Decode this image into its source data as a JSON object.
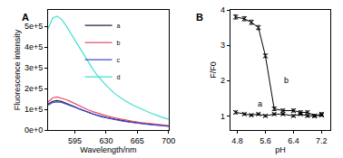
{
  "chart_data": [
    {
      "type": "line",
      "title": "A",
      "x_label": "Wavelength/nm",
      "y_label": "Fluorescence intensity",
      "x": [
        565,
        570,
        575,
        580,
        585,
        590,
        595,
        600,
        605,
        610,
        615,
        620,
        625,
        630,
        640,
        650,
        660,
        670,
        680,
        690,
        700
      ],
      "series": [
        {
          "name": "a",
          "color": "#1f1f3f",
          "values": [
            125000,
            138000,
            142000,
            138000,
            130000,
            122000,
            112000,
            102000,
            93000,
            85000,
            78000,
            72000,
            66000,
            61000,
            52000,
            44000,
            38000,
            32000,
            27000,
            23000,
            19000
          ]
        },
        {
          "name": "b",
          "color": "#e0506a",
          "values": [
            135000,
            155000,
            160000,
            155000,
            147000,
            138000,
            127000,
            116000,
            106000,
            97000,
            89000,
            82000,
            75000,
            69000,
            58000,
            49000,
            42000,
            36000,
            30000,
            25000,
            21000
          ]
        },
        {
          "name": "c",
          "color": "#4a4ad0",
          "values": [
            120000,
            132000,
            136000,
            133000,
            126000,
            118000,
            109000,
            99000,
            91000,
            83000,
            76000,
            70000,
            64000,
            59000,
            50000,
            42000,
            36000,
            30000,
            26000,
            22000,
            18000
          ]
        },
        {
          "name": "d",
          "color": "#40e0d0",
          "values": [
            490000,
            540000,
            550000,
            535000,
            505000,
            470000,
            430000,
            395000,
            360000,
            325000,
            295000,
            265000,
            240000,
            215000,
            175000,
            145000,
            120000,
            100000,
            82000,
            66000,
            52000
          ]
        }
      ],
      "xlim": [
        565,
        700
      ],
      "xticks": [
        595,
        630,
        665,
        700
      ],
      "ylim": [
        0,
        580000
      ],
      "yticks": [
        {
          "value": 0,
          "label": "0e+0"
        },
        {
          "value": 100000,
          "label": "1e+5"
        },
        {
          "value": 200000,
          "label": "2e+5"
        },
        {
          "value": 300000,
          "label": "3e+5"
        },
        {
          "value": 400000,
          "label": "4e+5"
        },
        {
          "value": 500000,
          "label": "5e+5"
        }
      ],
      "legend": "top"
    },
    {
      "type": "scatter",
      "title": "B",
      "x_label": "pH",
      "y_label": "F/F0",
      "x": [
        4.75,
        5.0,
        5.2,
        5.4,
        5.6,
        5.85,
        6.1,
        6.4,
        6.6,
        6.8,
        7.0,
        7.2
      ],
      "series": [
        {
          "name": "a",
          "color": "#000000",
          "values": [
            1.1,
            1.05,
            1.02,
            1.05,
            1.0,
            1.05,
            1.05,
            1.0,
            1.05,
            1.0,
            1.0,
            1.02
          ],
          "errors": [
            0.04,
            0.03,
            0.03,
            0.03,
            0.03,
            0.03,
            0.03,
            0.03,
            0.03,
            0.03,
            0.03,
            0.03
          ]
        },
        {
          "name": "b",
          "color": "#000000",
          "values": [
            3.8,
            3.75,
            3.65,
            3.5,
            2.7,
            1.2,
            1.15,
            1.15,
            1.1,
            1.1,
            1.0,
            1.05
          ],
          "errors": [
            0.06,
            0.06,
            0.06,
            0.06,
            0.05,
            0.05,
            0.04,
            0.04,
            0.04,
            0.04,
            0.04,
            0.04
          ]
        }
      ],
      "annotations": [
        {
          "text": "a",
          "x": 5.45,
          "y": 1.35
        },
        {
          "text": "b",
          "x": 6.2,
          "y": 2.0
        }
      ],
      "marker": "x",
      "xlim": [
        4.6,
        7.45
      ],
      "xticks": [
        4.8,
        5.6,
        6.4,
        7.2
      ],
      "ylim": [
        0.6,
        4.0
      ],
      "yticks": [
        1,
        2,
        3,
        4
      ]
    }
  ]
}
